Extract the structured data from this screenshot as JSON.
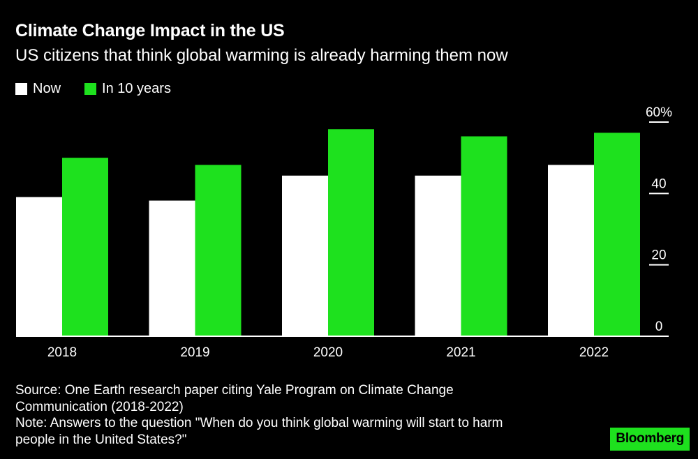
{
  "title": "Climate Change Impact in the US",
  "subtitle": "US citizens that think global warming is already harming them now",
  "legend": [
    {
      "label": "Now",
      "color": "#ffffff"
    },
    {
      "label": "In 10 years",
      "color": "#1ee11e"
    }
  ],
  "chart_data": {
    "type": "bar",
    "title": "Climate Change Impact in the US",
    "subtitle": "US citizens that think global warming is already harming them now",
    "categories": [
      "2018",
      "2019",
      "2020",
      "2021",
      "2022"
    ],
    "series": [
      {
        "name": "Now",
        "color": "#ffffff",
        "values": [
          39,
          38,
          45,
          45,
          48
        ]
      },
      {
        "name": "In 10 years",
        "color": "#1ee11e",
        "values": [
          50,
          48,
          58,
          56,
          57
        ]
      }
    ],
    "ylim": [
      0,
      60
    ],
    "yticks": [
      0,
      20,
      40,
      60
    ],
    "ytick_labels": [
      "0",
      "20",
      "40",
      "60%"
    ],
    "y_axis_side": "right",
    "xlabel": "",
    "ylabel": ""
  },
  "source_line1": "Source: One Earth research paper citing Yale Program on Climate Change",
  "source_line2": "Communication (2018-2022)",
  "note_line1": "Note: Answers to the question \"When do you think global warming will start to harm",
  "note_line2": "people in the United States?\"",
  "logo": "Bloomberg"
}
